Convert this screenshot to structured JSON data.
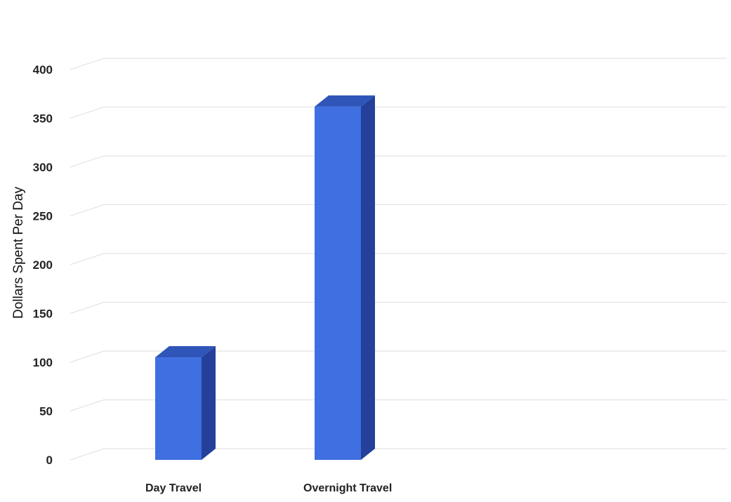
{
  "chart_data": {
    "type": "bar",
    "categories": [
      "Day Travel",
      "Overnight Travel"
    ],
    "values": [
      105,
      362
    ],
    "title": "",
    "xlabel": "",
    "ylabel": "Dollars Spent Per Day",
    "ylim": [
      0,
      400
    ],
    "yticks": [
      0,
      50,
      100,
      150,
      200,
      250,
      300,
      350,
      400
    ],
    "grid": true,
    "style": "3d-column",
    "colors": {
      "bar_front": "#3f6fe0",
      "bar_top": "#2f55b8",
      "bar_side": "#24409a",
      "gridline": "#e4e4e4",
      "text": "#222222"
    }
  }
}
